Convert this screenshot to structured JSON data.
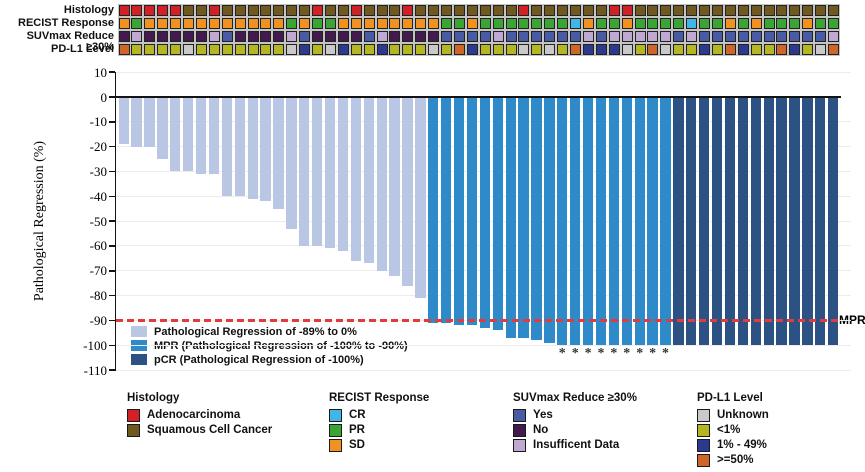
{
  "annotation_tracks": {
    "rows": [
      {
        "label": "Histology",
        "cells": [
          "A",
          "A",
          "A",
          "A",
          "A",
          "S",
          "S",
          "A",
          "S",
          "S",
          "S",
          "S",
          "S",
          "S",
          "S",
          "A",
          "S",
          "S",
          "A",
          "S",
          "S",
          "S",
          "A",
          "S",
          "S",
          "S",
          "S",
          "S",
          "S",
          "S",
          "S",
          "A",
          "S",
          "S",
          "S",
          "S",
          "S",
          "S",
          "A",
          "A",
          "S",
          "S",
          "S",
          "S",
          "S",
          "S",
          "S",
          "S",
          "S",
          "S",
          "S",
          "S",
          "S",
          "S",
          "S",
          "S"
        ]
      },
      {
        "label": "RECIST Response",
        "cells": [
          "D",
          "P",
          "D",
          "D",
          "D",
          "D",
          "D",
          "D",
          "D",
          "D",
          "D",
          "D",
          "D",
          "P",
          "D",
          "P",
          "P",
          "D",
          "D",
          "D",
          "D",
          "D",
          "D",
          "D",
          "D",
          "P",
          "P",
          "D",
          "P",
          "P",
          "P",
          "P",
          "P",
          "P",
          "P",
          "C",
          "D",
          "P",
          "P",
          "D",
          "P",
          "P",
          "P",
          "P",
          "C",
          "P",
          "P",
          "D",
          "P",
          "D",
          "P",
          "P",
          "P",
          "D",
          "P",
          "P"
        ]
      },
      {
        "label": "SUVmax Reduce ≥30%",
        "cells": [
          "N",
          "I",
          "N",
          "N",
          "N",
          "N",
          "N",
          "I",
          "Y",
          "N",
          "N",
          "N",
          "N",
          "I",
          "Y",
          "N",
          "N",
          "N",
          "N",
          "Y",
          "I",
          "N",
          "N",
          "N",
          "N",
          "Y",
          "Y",
          "Y",
          "Y",
          "I",
          "Y",
          "Y",
          "Y",
          "Y",
          "Y",
          "Y",
          "I",
          "Y",
          "I",
          "I",
          "I",
          "I",
          "I",
          "Y",
          "I",
          "Y",
          "Y",
          "Y",
          "Y",
          "Y",
          "Y",
          "Y",
          "Y",
          "Y",
          "Y",
          "I"
        ]
      },
      {
        "label": "PD-L1 Level",
        "cells": [
          "H",
          "L",
          "L",
          "L",
          "L",
          "U",
          "L",
          "L",
          "L",
          "L",
          "L",
          "L",
          "L",
          "U",
          "M",
          "L",
          "U",
          "M",
          "L",
          "L",
          "M",
          "L",
          "L",
          "L",
          "U",
          "L",
          "H",
          "M",
          "L",
          "L",
          "L",
          "U",
          "L",
          "U",
          "L",
          "H",
          "M",
          "M",
          "M",
          "U",
          "L",
          "H",
          "U",
          "L",
          "L",
          "M",
          "L",
          "H",
          "M",
          "L",
          "L",
          "H",
          "M",
          "L",
          "U",
          "H"
        ]
      }
    ],
    "palette": {
      "A": "#d22027",
      "S": "#70591f",
      "D": "#f09221",
      "P": "#3ca335",
      "C": "#41b6e6",
      "Y": "#4a5ba6",
      "N": "#421a4d",
      "I": "#bfa8d2",
      "U": "#c9c9c9",
      "L": "#b5b722",
      "M": "#2b3a8f",
      "H": "#cd6628"
    }
  },
  "chart_data": {
    "type": "bar",
    "ylabel": "Pathological Regression (%)",
    "ylim": [
      -110,
      10
    ],
    "yticks": [
      10,
      0,
      -10,
      -20,
      -30,
      -40,
      -50,
      -60,
      -70,
      -80,
      -90,
      -100,
      -110
    ],
    "grid": true,
    "values": [
      -19,
      -20,
      -20,
      -25,
      -30,
      -30,
      -31,
      -31,
      -40,
      -40,
      -41,
      -42,
      -45,
      -53,
      -60,
      -60,
      -61,
      -62,
      -66,
      -67,
      -70,
      -72,
      -76,
      -81,
      -91,
      -91,
      -92,
      -92,
      -93,
      -94,
      -97,
      -97,
      -98,
      -99,
      -100,
      -100,
      -100,
      -100,
      -100,
      -100,
      -100,
      -100,
      -100,
      -100,
      -100,
      -100,
      -100,
      -100,
      -100,
      -100,
      -100,
      -100,
      -100,
      -100,
      -100,
      -100
    ],
    "groups": [
      {
        "name": "Pathological Regression of -89% to 0%",
        "color": "#b9c7e4",
        "range": [
          0,
          23
        ]
      },
      {
        "name": "MPR (Pathological Regression of -100% to -90%)",
        "color": "#2e8ac8",
        "range": [
          24,
          42
        ]
      },
      {
        "name": "pCR (Pathological Regression of -100%)",
        "color": "#2c5283",
        "range": [
          43,
          55
        ]
      }
    ],
    "mpr_line": {
      "y": -90,
      "label": "MPR",
      "color": "#e23b3b"
    },
    "asterisk_indices": [
      34,
      35,
      36,
      37,
      38,
      39,
      40,
      41,
      42
    ],
    "legend_position": "inside bottom-left"
  },
  "legends": [
    {
      "title": "Histology",
      "items": [
        {
          "label": "Adenocarcinoma",
          "color": "#d22027"
        },
        {
          "label": "Squamous Cell Cancer",
          "color": "#70591f"
        }
      ]
    },
    {
      "title": "RECIST Response",
      "items": [
        {
          "label": "CR",
          "color": "#41b6e6"
        },
        {
          "label": "PR",
          "color": "#3ca335"
        },
        {
          "label": "SD",
          "color": "#f09221"
        }
      ]
    },
    {
      "title": "SUVmax Reduce ≥30%",
      "items": [
        {
          "label": "Yes",
          "color": "#4a5ba6"
        },
        {
          "label": "No",
          "color": "#421a4d"
        },
        {
          "label": "Insufficent Data",
          "color": "#bfa8d2"
        }
      ]
    },
    {
      "title": "PD-L1 Level",
      "items": [
        {
          "label": "Unknown",
          "color": "#c9c9c9"
        },
        {
          "label": "<1%",
          "color": "#b5b722"
        },
        {
          "label": "1% - 49%",
          "color": "#2b3a8f"
        },
        {
          "label": ">=50%",
          "color": "#cd6628"
        }
      ]
    }
  ]
}
